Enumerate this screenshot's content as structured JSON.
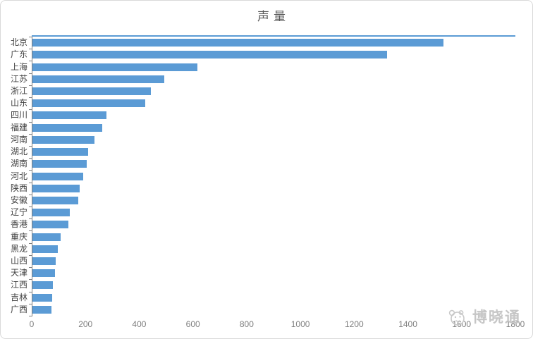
{
  "chart_data": {
    "type": "bar",
    "orientation": "horizontal",
    "title": "声量",
    "categories": [
      "北京",
      "广东",
      "上海",
      "江苏",
      "浙江",
      "山东",
      "四川",
      "福建",
      "河南",
      "湖北",
      "湖南",
      "河北",
      "陕西",
      "安徽",
      "辽宁",
      "香港",
      "重庆",
      "黑龙",
      "山西",
      "天津",
      "江西",
      "吉林",
      "广西"
    ],
    "values": [
      1530,
      1320,
      615,
      490,
      440,
      420,
      275,
      260,
      230,
      207,
      202,
      190,
      175,
      170,
      140,
      134,
      105,
      95,
      86,
      83,
      75,
      73,
      70
    ],
    "xlabel": "",
    "ylabel": "",
    "xlim": [
      0,
      1800
    ],
    "x_ticks": [
      0,
      200,
      400,
      600,
      800,
      1000,
      1200,
      1400,
      1600,
      1800
    ],
    "grid": false,
    "legend": false,
    "bar_color": "#5b9bd5",
    "plot_top_border_color": "#5b9bd5",
    "axis_color": "#7f7f7f",
    "title_color": "#595959",
    "category_label_color": "#404040",
    "tick_label_color": "#7f7f7f"
  },
  "watermark": {
    "logo_icon": "panda-logo-icon",
    "text": "博晓通",
    "color": "#c6c6c6"
  }
}
